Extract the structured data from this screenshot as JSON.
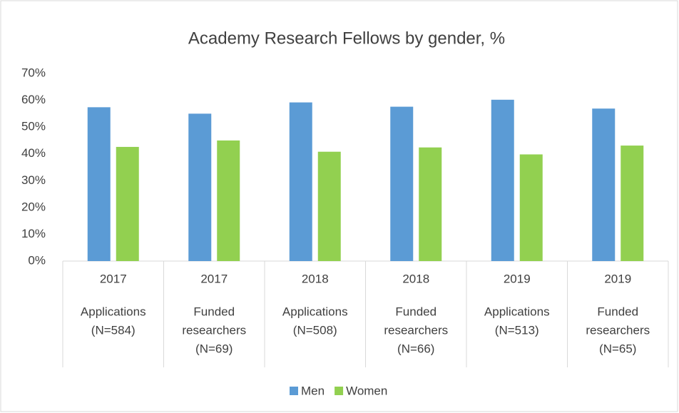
{
  "chart_data": {
    "type": "bar",
    "title": "Academy Research Fellows by gender, %",
    "categories": [
      [
        "2017",
        "Applications",
        "(N=584)"
      ],
      [
        "2017",
        "Funded",
        "researchers",
        "(N=69)"
      ],
      [
        "2018",
        "Applications",
        "(N=508)"
      ],
      [
        "2018",
        "Funded",
        "researchers",
        "(N=66)"
      ],
      [
        "2019",
        "Applications",
        "(N=513)"
      ],
      [
        "2019",
        "Funded",
        "researchers",
        "(N=65)"
      ]
    ],
    "series": [
      {
        "name": "Men",
        "color": "#5b9bd5",
        "values": [
          57.4,
          55.0,
          59.2,
          57.6,
          60.2,
          56.9
        ]
      },
      {
        "name": "Women",
        "color": "#92d050",
        "values": [
          42.6,
          45.0,
          40.8,
          42.4,
          39.8,
          43.1
        ]
      }
    ],
    "ylim": [
      0,
      70
    ],
    "yticks": [
      {
        "value": 0,
        "label": "0%"
      },
      {
        "value": 10,
        "label": "10%"
      },
      {
        "value": 20,
        "label": "20%"
      },
      {
        "value": 30,
        "label": "30%"
      },
      {
        "value": 40,
        "label": "40%"
      },
      {
        "value": 50,
        "label": "50%"
      },
      {
        "value": 60,
        "label": "60%"
      },
      {
        "value": 70,
        "label": "70%"
      }
    ],
    "legend": "bottom"
  }
}
